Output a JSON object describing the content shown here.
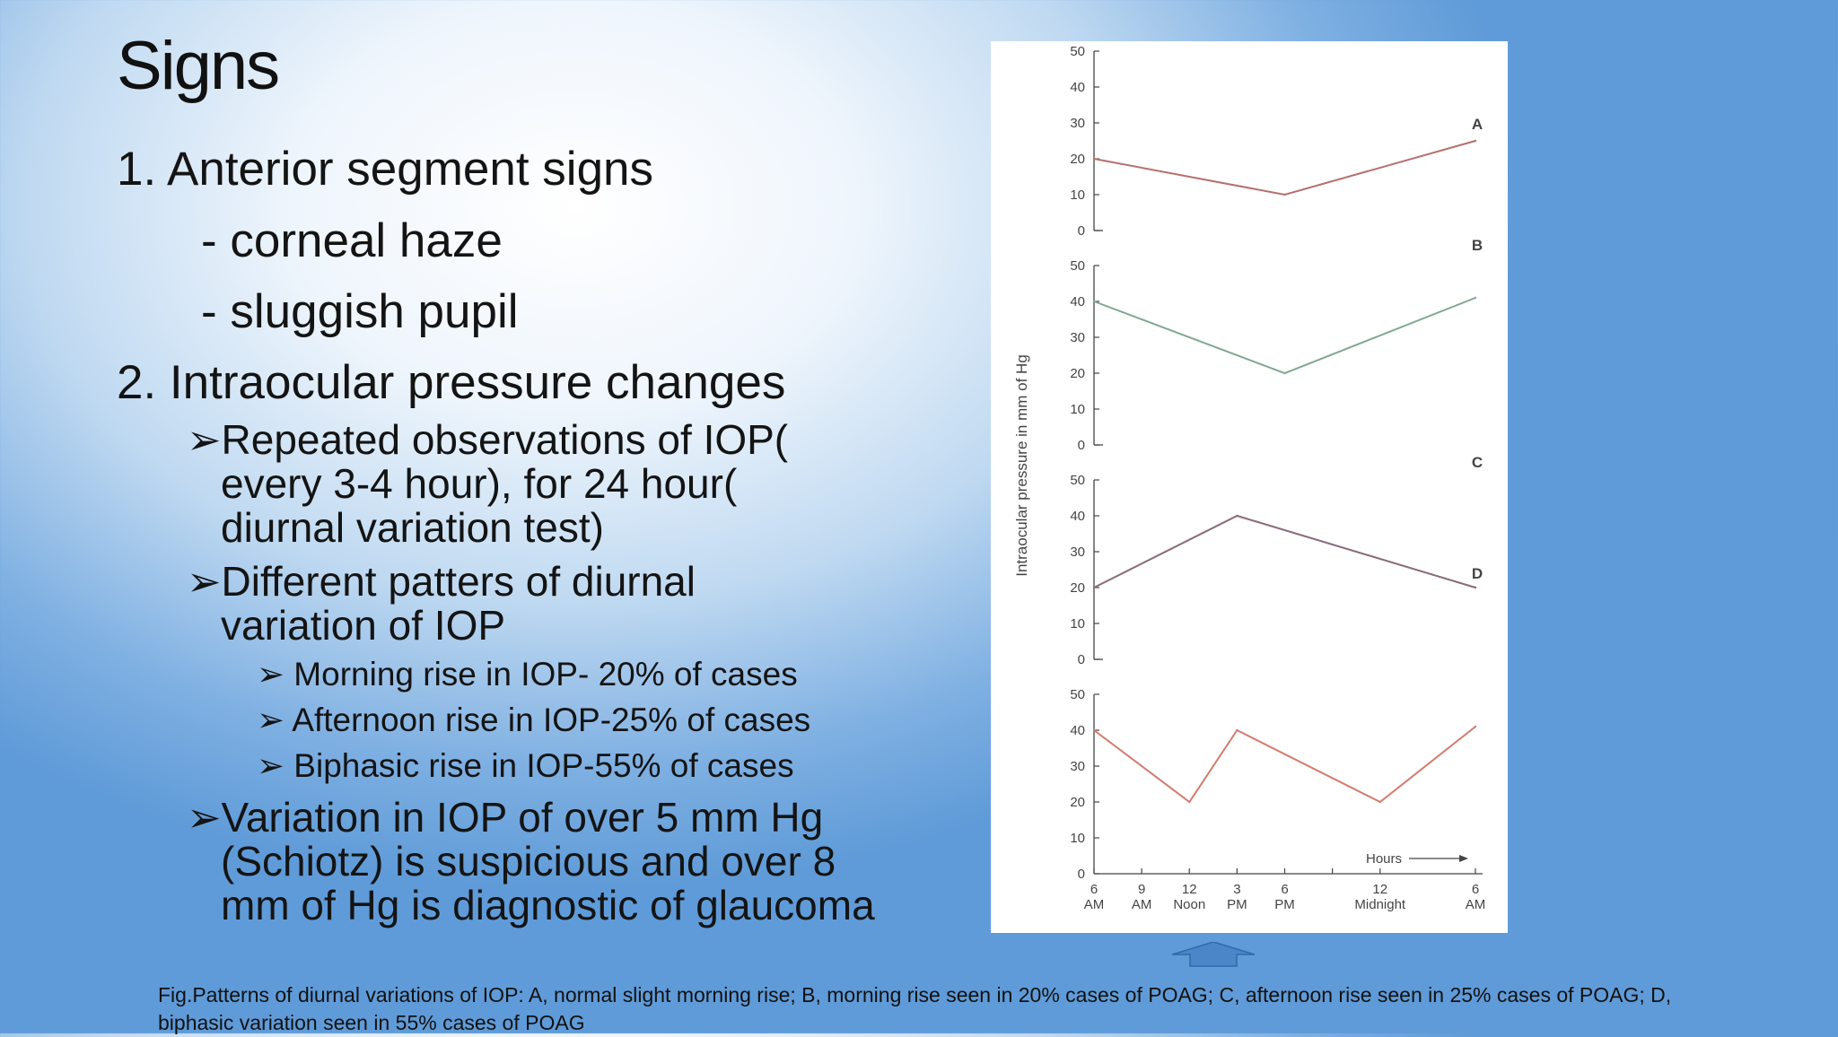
{
  "slide": {
    "title": "Signs",
    "items": [
      {
        "text": "1.   Anterior segment signs"
      },
      {
        "text": "- corneal haze"
      },
      {
        "text": "- sluggish pupil"
      },
      {
        "text": "2. Intraocular pressure changes"
      },
      {
        "text": "Repeated observations of IOP("
      },
      {
        "text": "every 3-4 hour), for 24 hour("
      },
      {
        "text": "diurnal variation test)"
      },
      {
        "text": "Different patters of diurnal"
      },
      {
        "text": "variation of IOP"
      },
      {
        "text": "Morning rise in IOP- 20% of cases"
      },
      {
        "text": "Afternoon rise in IOP-25% of cases"
      },
      {
        "text": "Biphasic rise in IOP-55% of cases"
      },
      {
        "text": "Variation in IOP of over 5 mm Hg"
      },
      {
        "text": "(Schiotz) is suspicious and over 8"
      },
      {
        "text": "mm of Hg is diagnostic of glaucoma"
      }
    ],
    "bullet_glyph": "➢",
    "caption": "Fig.Patterns of diurnal variations of IOP: A, normal slight morning rise; B, morning rise seen in 20% cases of POAG; C, afternoon rise seen in 25% cases of POAG; D, biphasic variation seen in 55% cases of POAG"
  },
  "colors": {
    "A": "#b5706d",
    "B": "#7fa890",
    "C": "#8a6a7a",
    "D": "#d27a6e",
    "axis": "#444444"
  },
  "chart_data": {
    "type": "line",
    "ylabel": "Intraocular pressure in mm of Hg",
    "xlabel": "Hours",
    "ylim": [
      0,
      50
    ],
    "yticks": [
      "0",
      "10",
      "20",
      "30",
      "40",
      "50"
    ],
    "x_hours": [
      0,
      3,
      6,
      9,
      12,
      18,
      24
    ],
    "xtick_labels": [
      [
        "6",
        "AM"
      ],
      [
        "9",
        "AM"
      ],
      [
        "12",
        "Noon"
      ],
      [
        "3",
        "PM"
      ],
      [
        "6",
        "PM"
      ],
      [
        "12",
        "Midnight"
      ],
      [
        "6",
        "AM"
      ]
    ],
    "panels": [
      {
        "label": "A",
        "points": [
          [
            0,
            20
          ],
          [
            12,
            10
          ],
          [
            24,
            25
          ]
        ]
      },
      {
        "label": "B",
        "points": [
          [
            0,
            40
          ],
          [
            12,
            20
          ],
          [
            24,
            41
          ]
        ]
      },
      {
        "label": "C",
        "points": [
          [
            0,
            20
          ],
          [
            9,
            40
          ],
          [
            24,
            20
          ]
        ]
      },
      {
        "label": "D",
        "points": [
          [
            0,
            40
          ],
          [
            6,
            20
          ],
          [
            9,
            40
          ],
          [
            18,
            20
          ],
          [
            24,
            41
          ]
        ]
      }
    ]
  }
}
